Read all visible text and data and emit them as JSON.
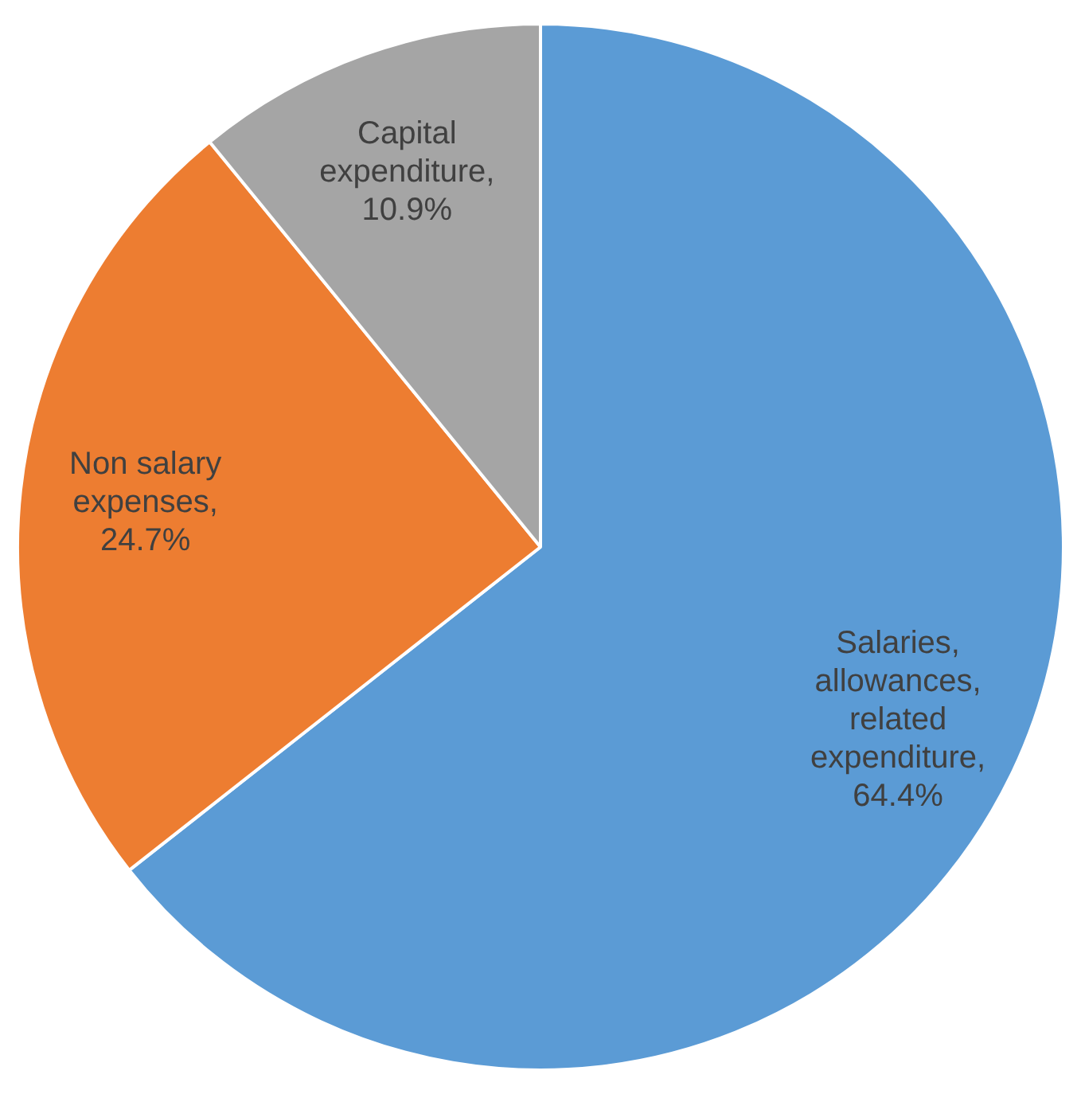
{
  "chart_data": {
    "type": "pie",
    "categories": [
      "Salaries, allowances, related expenditure",
      "Non salary expenses",
      "Capital expenditure"
    ],
    "values": [
      64.4,
      24.7,
      10.9
    ],
    "value_labels": [
      ", 64.4%",
      ", 24.7%",
      ", 10.9%"
    ],
    "colors": [
      "#5b9bd5",
      "#ed7d31",
      "#a5a5a5"
    ],
    "legend": false
  }
}
